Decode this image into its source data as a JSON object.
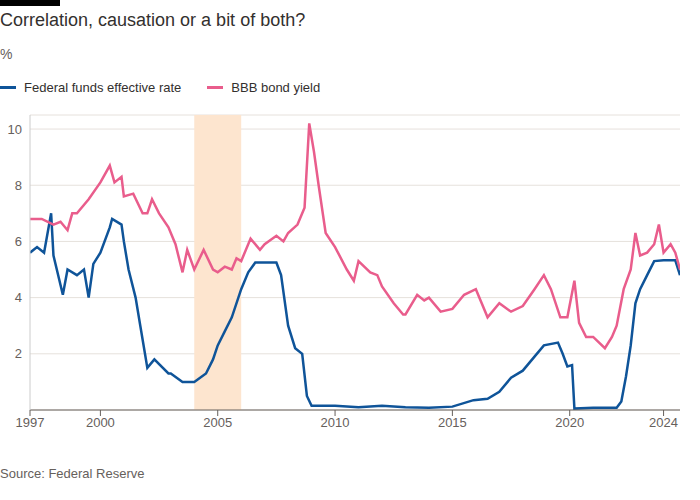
{
  "chart_data": {
    "type": "line",
    "title": "Correlation, causation or a bit of both?",
    "y_label": "%",
    "source": "Source: Federal Reserve",
    "xlim": [
      1997,
      2024.7
    ],
    "xticks": [
      1997,
      2000,
      2005,
      2010,
      2015,
      2020,
      2024
    ],
    "ylim": [
      0,
      10.5
    ],
    "yticks": [
      2,
      4,
      6,
      8,
      10
    ],
    "grid": true,
    "legend": "top left",
    "shaded_x": [
      2004,
      2006
    ],
    "series": [
      {
        "name": "Federal funds effective rate",
        "color": "#0f5499",
        "x": [
          1997.0,
          1997.3,
          1997.6,
          1997.9,
          1998.0,
          1998.4,
          1998.6,
          1999.0,
          1999.3,
          1999.5,
          1999.7,
          2000.0,
          2000.4,
          2000.5,
          2000.9,
          2001.0,
          2001.2,
          2001.5,
          2001.7,
          2001.9,
          2002.0,
          2002.3,
          2002.9,
          2003.0,
          2003.5,
          2004.0,
          2004.5,
          2004.8,
          2005.0,
          2005.3,
          2005.6,
          2006.0,
          2006.3,
          2006.6,
          2007.0,
          2007.5,
          2007.7,
          2008.0,
          2008.3,
          2008.6,
          2008.8,
          2009.0,
          2010.0,
          2011.0,
          2012.0,
          2013.0,
          2014.0,
          2015.0,
          2015.9,
          2016.5,
          2017.0,
          2017.5,
          2018.0,
          2018.5,
          2018.9,
          2019.5,
          2019.7,
          2019.9,
          2020.1,
          2020.2,
          2021.0,
          2022.0,
          2022.2,
          2022.4,
          2022.6,
          2022.8,
          2023.0,
          2023.3,
          2023.6,
          2024.0,
          2024.5,
          2024.7
        ],
        "values": [
          5.6,
          5.8,
          5.6,
          7.0,
          5.5,
          4.1,
          5.0,
          4.8,
          5.0,
          4.0,
          5.2,
          5.6,
          6.5,
          6.8,
          6.6,
          6.0,
          5.0,
          4.0,
          3.0,
          2.0,
          1.5,
          1.8,
          1.3,
          1.3,
          1.0,
          1.0,
          1.3,
          1.8,
          2.3,
          2.8,
          3.3,
          4.3,
          4.9,
          5.25,
          5.25,
          5.25,
          4.8,
          3.0,
          2.2,
          2.0,
          0.5,
          0.15,
          0.15,
          0.1,
          0.15,
          0.1,
          0.08,
          0.12,
          0.35,
          0.4,
          0.65,
          1.15,
          1.4,
          1.9,
          2.3,
          2.4,
          2.0,
          1.55,
          1.6,
          0.05,
          0.08,
          0.08,
          0.3,
          1.2,
          2.3,
          3.8,
          4.3,
          4.8,
          5.3,
          5.33,
          5.33,
          4.8
        ]
      },
      {
        "name": "BBB bond yield",
        "color": "#e95d8c",
        "x": [
          1997.0,
          1997.5,
          1998.0,
          1998.3,
          1998.6,
          1998.8,
          1999.0,
          1999.5,
          2000.0,
          2000.4,
          2000.6,
          2000.9,
          2001.0,
          2001.4,
          2001.8,
          2002.0,
          2002.2,
          2002.5,
          2002.9,
          2003.2,
          2003.5,
          2003.7,
          2004.0,
          2004.4,
          2004.8,
          2005.0,
          2005.3,
          2005.6,
          2005.8,
          2006.0,
          2006.4,
          2006.8,
          2007.0,
          2007.5,
          2007.8,
          2008.0,
          2008.4,
          2008.7,
          2008.9,
          2009.1,
          2009.3,
          2009.6,
          2010.0,
          2010.5,
          2010.8,
          2011.0,
          2011.5,
          2011.8,
          2012.0,
          2012.5,
          2012.9,
          2013.0,
          2013.5,
          2013.8,
          2014.0,
          2014.5,
          2015.0,
          2015.5,
          2016.0,
          2016.5,
          2017.0,
          2017.5,
          2018.0,
          2018.5,
          2018.9,
          2019.2,
          2019.6,
          2019.9,
          2020.2,
          2020.4,
          2020.7,
          2021.0,
          2021.5,
          2021.8,
          2022.0,
          2022.3,
          2022.6,
          2022.8,
          2023.0,
          2023.3,
          2023.6,
          2023.8,
          2024.0,
          2024.3,
          2024.5,
          2024.7
        ],
        "values": [
          6.8,
          6.8,
          6.6,
          6.7,
          6.4,
          7.0,
          7.0,
          7.5,
          8.1,
          8.7,
          8.1,
          8.3,
          7.6,
          7.7,
          7.0,
          7.0,
          7.5,
          7.0,
          6.5,
          5.9,
          4.9,
          5.7,
          5.0,
          5.7,
          5.0,
          4.9,
          5.1,
          5.0,
          5.4,
          5.3,
          6.1,
          5.7,
          5.9,
          6.2,
          6.0,
          6.3,
          6.6,
          7.2,
          10.2,
          9.2,
          8.0,
          6.3,
          5.8,
          5.0,
          4.6,
          5.3,
          4.9,
          4.8,
          4.4,
          3.8,
          3.4,
          3.4,
          4.1,
          3.9,
          4.0,
          3.5,
          3.6,
          4.1,
          4.3,
          3.3,
          3.8,
          3.5,
          3.7,
          4.3,
          4.8,
          4.3,
          3.3,
          3.3,
          4.6,
          3.1,
          2.6,
          2.6,
          2.2,
          2.6,
          3.0,
          4.3,
          5.0,
          6.3,
          5.5,
          5.6,
          5.9,
          6.6,
          5.6,
          5.9,
          5.6,
          5.0
        ]
      }
    ]
  }
}
